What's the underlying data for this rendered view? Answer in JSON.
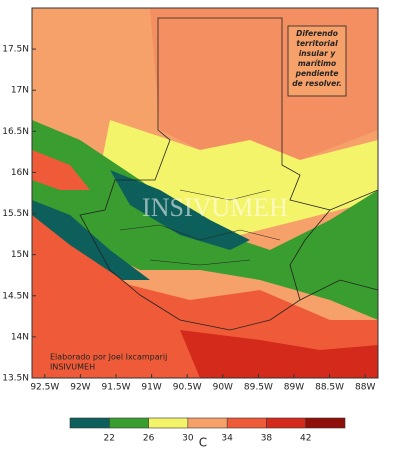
{
  "map": {
    "xlim": [
      -92.68,
      -87.82
    ],
    "ylim": [
      13.5,
      18.0
    ],
    "xticks": [
      {
        "value": -92.5,
        "label": "92.5W"
      },
      {
        "value": -92,
        "label": "92W"
      },
      {
        "value": -91.5,
        "label": "91.5W"
      },
      {
        "value": -91,
        "label": "91W"
      },
      {
        "value": -90.5,
        "label": "90.5W"
      },
      {
        "value": -90,
        "label": "90W"
      },
      {
        "value": -89.5,
        "label": "89.5W"
      },
      {
        "value": -89,
        "label": "89W"
      },
      {
        "value": -88.5,
        "label": "88.5W"
      },
      {
        "value": -88,
        "label": "88W"
      }
    ],
    "yticks": [
      {
        "value": 13.5,
        "label": "13.5N"
      },
      {
        "value": 14,
        "label": "14N"
      },
      {
        "value": 14.5,
        "label": "14.5N"
      },
      {
        "value": 15,
        "label": "15N"
      },
      {
        "value": 15.5,
        "label": "15.5N"
      },
      {
        "value": 16,
        "label": "16N"
      },
      {
        "value": 16.5,
        "label": "16.5N"
      },
      {
        "value": 17,
        "label": "17N"
      },
      {
        "value": 17.5,
        "label": "17.5N"
      }
    ],
    "annotation": [
      "Diferendo",
      "territorial",
      "insular y",
      "marítimo",
      "pendiente",
      "de resolver."
    ],
    "credit": [
      "Elaborado  por Joel Ixcamparij",
      "INSIVUMEH"
    ],
    "watermark": "INSIVUMEH"
  },
  "colorbar": {
    "clim": [
      18,
      46
    ],
    "ticks": [
      22,
      26,
      30,
      34,
      38,
      42
    ],
    "colors": [
      "#0d5f5c",
      "#3a9d2f",
      "#f4f46a",
      "#f6a06a",
      "#ef5b38",
      "#d42a1c",
      "#8f0f0a"
    ],
    "unit": "C"
  }
}
